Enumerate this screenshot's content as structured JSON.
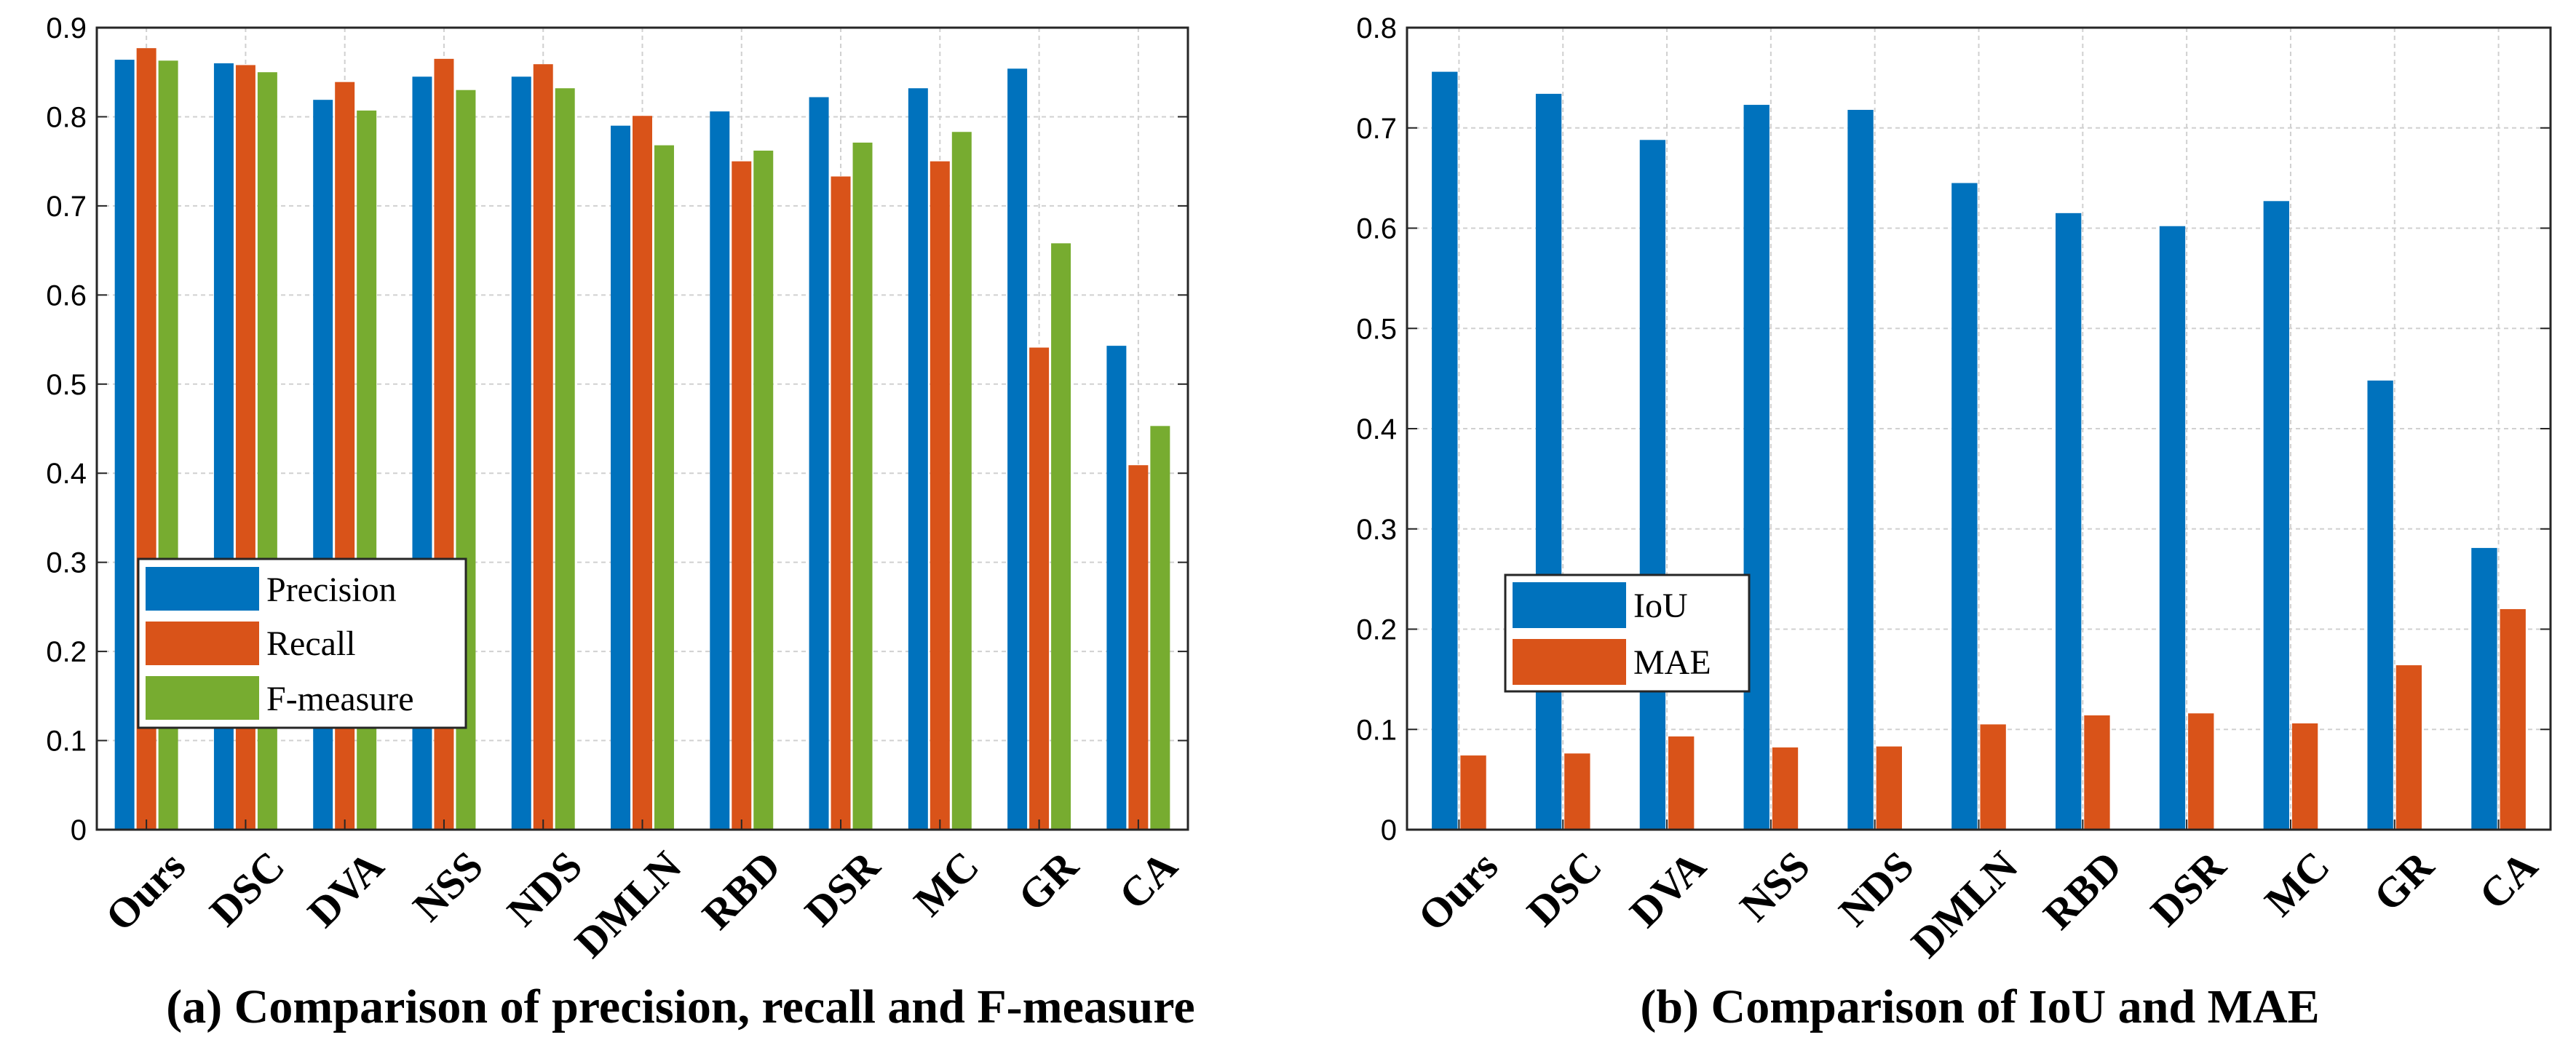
{
  "chart_data": [
    {
      "type": "bar",
      "title": "(a) Comparison of precision, recall and F-measure",
      "xlabel": "",
      "ylabel": "",
      "categories": [
        "Ours",
        "DSC",
        "DVA",
        "NSS",
        "NDS",
        "DMLN",
        "RBD",
        "DSR",
        "MC",
        "GR",
        "CA"
      ],
      "series": [
        {
          "name": "Precision",
          "color": "#0072BD",
          "values": [
            0.864,
            0.86,
            0.819,
            0.845,
            0.845,
            0.79,
            0.806,
            0.822,
            0.832,
            0.854,
            0.543
          ]
        },
        {
          "name": "Recall",
          "color": "#D95319",
          "values": [
            0.877,
            0.858,
            0.839,
            0.865,
            0.859,
            0.801,
            0.75,
            0.733,
            0.75,
            0.541,
            0.409
          ]
        },
        {
          "name": "F-measure",
          "color": "#77AC30",
          "values": [
            0.863,
            0.85,
            0.807,
            0.83,
            0.832,
            0.768,
            0.762,
            0.771,
            0.783,
            0.658,
            0.453
          ]
        }
      ],
      "ylim": [
        0,
        0.9
      ],
      "yticks": [
        0,
        0.1,
        0.2,
        0.3,
        0.4,
        0.5,
        0.6,
        0.7,
        0.8,
        0.9
      ],
      "ytick_labels": [
        "0",
        "0.1",
        "0.2",
        "0.3",
        "0.4",
        "0.5",
        "0.6",
        "0.7",
        "0.8",
        "0.9"
      ],
      "grid": true,
      "legend_position": "lower-left"
    },
    {
      "type": "bar",
      "title": "(b) Comparison of IoU and MAE",
      "xlabel": "",
      "ylabel": "",
      "categories": [
        "Ours",
        "DSC",
        "DVA",
        "NSS",
        "NDS",
        "DMLN",
        "RBD",
        "DSR",
        "MC",
        "GR",
        "CA"
      ],
      "series": [
        {
          "name": "IoU",
          "color": "#0072BD",
          "values": [
            0.756,
            0.734,
            0.688,
            0.723,
            0.718,
            0.645,
            0.615,
            0.602,
            0.627,
            0.448,
            0.281
          ]
        },
        {
          "name": "MAE",
          "color": "#D95319",
          "values": [
            0.074,
            0.076,
            0.093,
            0.082,
            0.083,
            0.105,
            0.114,
            0.116,
            0.106,
            0.164,
            0.22
          ]
        }
      ],
      "ylim": [
        0,
        0.8
      ],
      "yticks": [
        0,
        0.1,
        0.2,
        0.3,
        0.4,
        0.5,
        0.6,
        0.7,
        0.8
      ],
      "ytick_labels": [
        "0",
        "0.1",
        "0.2",
        "0.3",
        "0.4",
        "0.5",
        "0.6",
        "0.7",
        "0.8"
      ],
      "grid": true,
      "legend_position": "middle-left"
    }
  ]
}
